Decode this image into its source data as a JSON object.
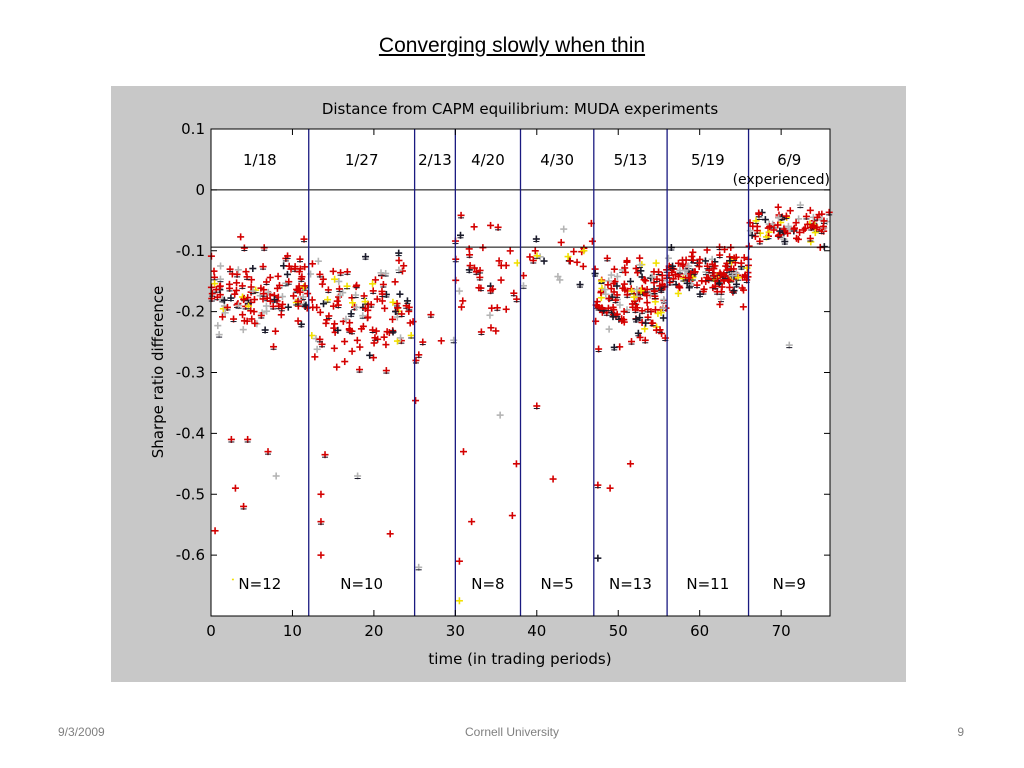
{
  "slide": {
    "title": "Converging slowly when thin",
    "footer_date": "9/3/2009",
    "footer_center": "Cornell University",
    "page_number": "9"
  },
  "chart_data": {
    "type": "scatter",
    "title": "Distance from CAPM equilibrium: MUDA experiments",
    "xlabel": "time (in trading periods)",
    "ylabel": "Sharpe ratio difference",
    "xlim": [
      0,
      76
    ],
    "ylim": [
      -0.7,
      0.1
    ],
    "xticks": [
      0,
      10,
      20,
      30,
      40,
      50,
      60,
      70
    ],
    "yticks": [
      0.1,
      0,
      -0.1,
      -0.2,
      -0.3,
      -0.4,
      -0.5,
      -0.6
    ],
    "ytick_labels": [
      "0.1",
      "0",
      "-0.1",
      "-0.2",
      "-0.3",
      "-0.4",
      "-0.5",
      "-0.6"
    ],
    "reference_lines": [
      0,
      -0.094
    ],
    "grid": false,
    "colors": {
      "dividers": "#1a1a80",
      "markers_main": "#d40000",
      "markers_dark": "#1a1a2a",
      "markers_highlight": "#f2e000",
      "markers_light": "#b4b4b4",
      "plot_bg": "#ffffff",
      "figure_bg": "#c8c8c8"
    },
    "sessions": [
      {
        "label": "1/18",
        "n_label": "N=12",
        "x_start": 0,
        "x_end": 12
      },
      {
        "label": "1/27",
        "n_label": "N=10",
        "x_start": 12,
        "x_end": 25
      },
      {
        "label": "2/13",
        "n_label": "",
        "x_start": 25,
        "x_end": 30
      },
      {
        "label": "4/20",
        "n_label": "N=8",
        "x_start": 30,
        "x_end": 38
      },
      {
        "label": "4/30",
        "n_label": "N=5",
        "x_start": 38,
        "x_end": 47
      },
      {
        "label": "5/13",
        "n_label": "N=13",
        "x_start": 47,
        "x_end": 56
      },
      {
        "label": "5/19",
        "n_label": "N=11",
        "x_start": 56,
        "x_end": 66
      },
      {
        "label": "6/9",
        "n_label": "N=9",
        "x_start": 66,
        "x_end": 76
      }
    ],
    "session_notes": [
      {
        "session": "6/9",
        "text": "(experienced)"
      }
    ],
    "point_clusters": [
      {
        "x": [
          0,
          12
        ],
        "y_center": -0.17,
        "y_spread": 0.11,
        "count": 140
      },
      {
        "x": [
          12,
          25
        ],
        "y_center": -0.2,
        "y_spread": 0.12,
        "count": 130
      },
      {
        "x": [
          25,
          30
        ],
        "y_center": -0.3,
        "y_spread": 0.1,
        "count": 5
      },
      {
        "x": [
          30,
          38
        ],
        "y_center": -0.15,
        "y_spread": 0.14,
        "count": 40
      },
      {
        "x": [
          38,
          47
        ],
        "y_center": -0.1,
        "y_spread": 0.08,
        "count": 25
      },
      {
        "x": [
          47,
          56
        ],
        "y_center": -0.18,
        "y_spread": 0.1,
        "count": 160
      },
      {
        "x": [
          56,
          66
        ],
        "y_center": -0.14,
        "y_spread": 0.06,
        "count": 150
      },
      {
        "x": [
          66,
          76
        ],
        "y_center": -0.06,
        "y_spread": 0.05,
        "count": 90
      }
    ],
    "outliers": [
      [
        0.5,
        -0.56
      ],
      [
        3,
        -0.49
      ],
      [
        3,
        -0.64
      ],
      [
        4,
        -0.52
      ],
      [
        2.5,
        -0.41
      ],
      [
        4.5,
        -0.41
      ],
      [
        7,
        -0.43
      ],
      [
        8,
        -0.47
      ],
      [
        13.5,
        -0.6
      ],
      [
        13.5,
        -0.545
      ],
      [
        13.5,
        -0.5
      ],
      [
        14,
        -0.435
      ],
      [
        22,
        -0.565
      ],
      [
        18,
        -0.47
      ],
      [
        25.5,
        -0.62
      ],
      [
        30.5,
        -0.675
      ],
      [
        30.5,
        -0.61
      ],
      [
        31,
        -0.43
      ],
      [
        32,
        -0.545
      ],
      [
        35.5,
        -0.37
      ],
      [
        37.5,
        -0.45
      ],
      [
        37,
        -0.535
      ],
      [
        40,
        -0.355
      ],
      [
        42,
        -0.475
      ],
      [
        47.5,
        -0.485
      ],
      [
        47.5,
        -0.605
      ],
      [
        49,
        -0.49
      ],
      [
        51.5,
        -0.45
      ],
      [
        27,
        -0.205
      ],
      [
        26,
        -0.25
      ],
      [
        71,
        -0.255
      ]
    ]
  }
}
